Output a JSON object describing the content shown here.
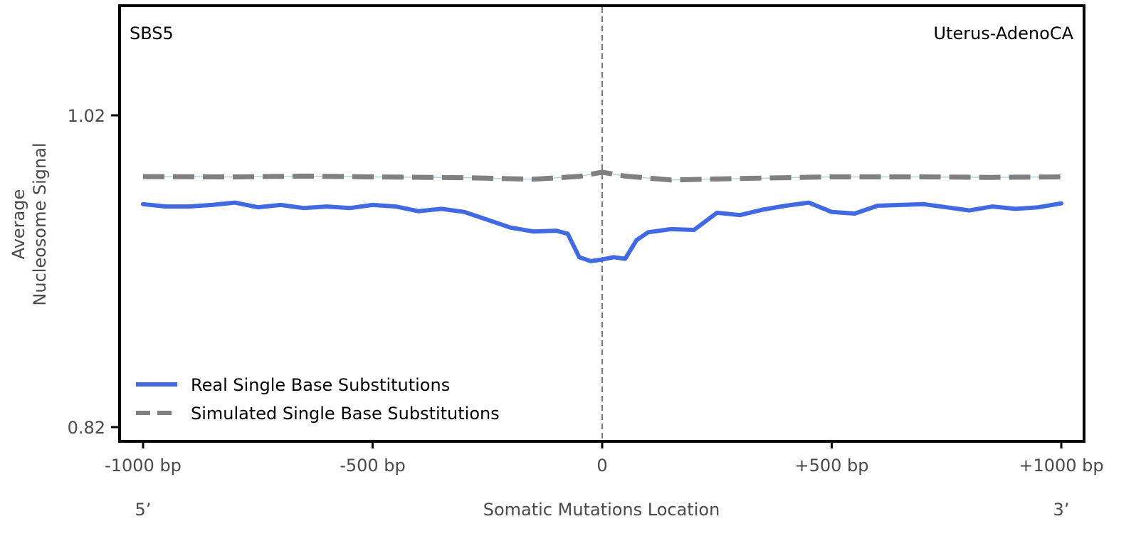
{
  "chart_data": {
    "type": "line",
    "signature_label": "SBS5",
    "cancer_type_label": "Uterus-AdenoCA",
    "xlabel": "Somatic Mutations Location",
    "ylabel_line1": "Average",
    "ylabel_line2": "Nucleosome Signal",
    "x_left_end_label": "5’",
    "x_right_end_label": "3’",
    "xlim": [
      -1000,
      1000
    ],
    "ylim": [
      0.82,
      1.02
    ],
    "x_ticks": [
      {
        "value": -1000,
        "label": "-1000 bp"
      },
      {
        "value": -500,
        "label": "-500 bp"
      },
      {
        "value": 0,
        "label": "0"
      },
      {
        "value": 500,
        "label": "+500 bp"
      },
      {
        "value": 1000,
        "label": "+1000 bp"
      }
    ],
    "y_ticks": [
      {
        "value": 1.02,
        "label": "1.02"
      },
      {
        "value": 0.82,
        "label": "0.82"
      }
    ],
    "center_line": 0,
    "legend_position": "bottom-left",
    "series": [
      {
        "name": "Real Single Base Substitutions",
        "color": "#4169e1",
        "style": "solid",
        "x": [
          -1000,
          -950,
          -900,
          -850,
          -800,
          -750,
          -700,
          -650,
          -600,
          -550,
          -500,
          -450,
          -400,
          -350,
          -300,
          -250,
          -200,
          -150,
          -100,
          -75,
          -50,
          -25,
          0,
          25,
          50,
          75,
          100,
          150,
          200,
          250,
          300,
          350,
          400,
          450,
          500,
          550,
          600,
          650,
          700,
          750,
          800,
          850,
          900,
          950,
          1000
        ],
        "values": [
          0.963,
          0.9615,
          0.9615,
          0.9625,
          0.964,
          0.961,
          0.9625,
          0.9605,
          0.9615,
          0.9605,
          0.9625,
          0.9615,
          0.9585,
          0.96,
          0.958,
          0.953,
          0.948,
          0.9455,
          0.946,
          0.944,
          0.929,
          0.9265,
          0.9275,
          0.929,
          0.928,
          0.94,
          0.945,
          0.947,
          0.9465,
          0.9575,
          0.956,
          0.9595,
          0.962,
          0.964,
          0.958,
          0.957,
          0.962,
          0.9625,
          0.963,
          0.961,
          0.959,
          0.9615,
          0.96,
          0.961,
          0.9635
        ]
      },
      {
        "name": "Simulated Single Base Substitutions",
        "color": "#808080",
        "style": "dashed",
        "x": [
          -1000,
          -800,
          -650,
          -500,
          -300,
          -150,
          -50,
          0,
          50,
          150,
          300,
          500,
          700,
          850,
          1000
        ],
        "values": [
          0.9807,
          0.9805,
          0.981,
          0.9805,
          0.98,
          0.979,
          0.9808,
          0.9835,
          0.981,
          0.9785,
          0.9795,
          0.9805,
          0.9805,
          0.9802,
          0.9805
        ]
      }
    ]
  }
}
